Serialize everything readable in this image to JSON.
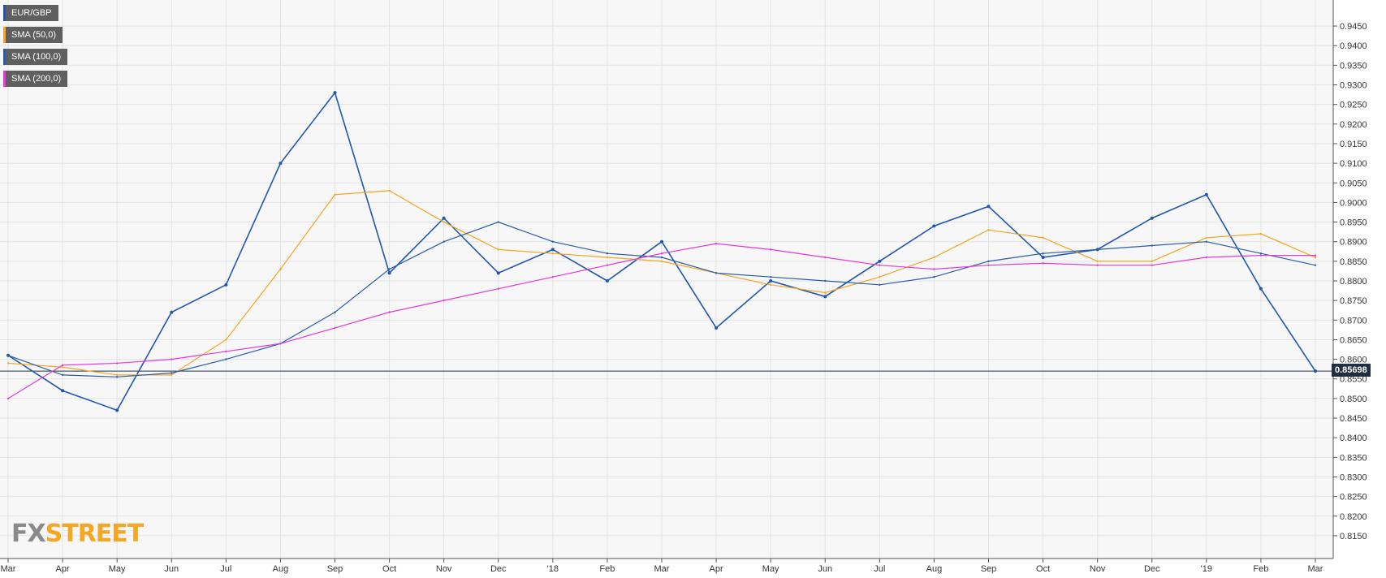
{
  "legend": [
    {
      "label": "EUR/GBP",
      "color": "#1f57b0"
    },
    {
      "label": "SMA (50,0)",
      "color": "#f5a623"
    },
    {
      "label": "SMA (100,0)",
      "color": "#2a5caa"
    },
    {
      "label": "SMA (200,0)",
      "color": "#e33ad8"
    }
  ],
  "logo": {
    "fx": "FX",
    "street": "STREET"
  },
  "chart_data": {
    "type": "line",
    "title": "",
    "xlabel": "",
    "ylabel": "",
    "ylim": [
      0.8125,
      0.9475
    ],
    "grid": true,
    "y_ticks": [
      "0.9450",
      "0.9400",
      "0.9350",
      "0.9300",
      "0.9250",
      "0.9200",
      "0.9150",
      "0.9100",
      "0.9050",
      "0.9000",
      "0.8950",
      "0.8900",
      "0.8850",
      "0.8800",
      "0.8750",
      "0.8700",
      "0.8650",
      "0.8600",
      "0.8550",
      "0.8500",
      "0.8450",
      "0.8400",
      "0.8350",
      "0.8300",
      "0.8250",
      "0.8200",
      "0.8150"
    ],
    "x_ticks": [
      "Mar",
      "Apr",
      "May",
      "Jun",
      "Jul",
      "Aug",
      "Sep",
      "Oct",
      "Nov",
      "Dec",
      "'18",
      "Feb",
      "Mar",
      "Apr",
      "May",
      "Jun",
      "Jul",
      "Aug",
      "Sep",
      "Oct",
      "Nov",
      "Dec",
      "'19",
      "Feb",
      "Mar"
    ],
    "last_price": "0.85698",
    "colors": {
      "up": "#1f57b0",
      "down": "#f5a623",
      "sma50": "#f5a623",
      "sma100": "#2a5caa",
      "sma200": "#e33ad8",
      "grid": "#e3e3e3",
      "bg": "#f7f7f7"
    },
    "series": [
      {
        "name": "EUR/GBP",
        "x": [
          "Mar",
          "Apr",
          "May",
          "Jun",
          "Jul",
          "Aug",
          "Sep",
          "Oct",
          "Nov",
          "Dec",
          "'18",
          "Feb",
          "Mar",
          "Apr",
          "May",
          "Jun",
          "Jul",
          "Aug",
          "Sep",
          "Oct",
          "Nov",
          "Dec",
          "'19",
          "Feb",
          "Mar"
        ],
        "values": [
          0.861,
          0.852,
          0.847,
          0.872,
          0.879,
          0.91,
          0.928,
          0.882,
          0.896,
          0.882,
          0.888,
          0.88,
          0.89,
          0.868,
          0.88,
          0.876,
          0.885,
          0.894,
          0.899,
          0.886,
          0.888,
          0.896,
          0.902,
          0.878,
          0.857
        ]
      },
      {
        "name": "SMA (50,0)",
        "x": [
          "Mar",
          "Apr",
          "May",
          "Jun",
          "Jul",
          "Aug",
          "Sep",
          "Oct",
          "Nov",
          "Dec",
          "'18",
          "Feb",
          "Mar",
          "Apr",
          "May",
          "Jun",
          "Jul",
          "Aug",
          "Sep",
          "Oct",
          "Nov",
          "Dec",
          "'19",
          "Feb",
          "Mar"
        ],
        "values": [
          0.859,
          0.858,
          0.856,
          0.856,
          0.865,
          0.883,
          0.902,
          0.903,
          0.895,
          0.888,
          0.887,
          0.886,
          0.885,
          0.882,
          0.879,
          0.877,
          0.881,
          0.886,
          0.893,
          0.891,
          0.885,
          0.885,
          0.891,
          0.892,
          0.886
        ]
      },
      {
        "name": "SMA (100,0)",
        "x": [
          "Mar",
          "Apr",
          "May",
          "Jun",
          "Jul",
          "Aug",
          "Sep",
          "Oct",
          "Nov",
          "Dec",
          "'18",
          "Feb",
          "Mar",
          "Apr",
          "May",
          "Jun",
          "Jul",
          "Aug",
          "Sep",
          "Oct",
          "Nov",
          "Dec",
          "'19",
          "Feb",
          "Mar"
        ],
        "values": [
          0.861,
          0.856,
          0.8555,
          0.8565,
          0.86,
          0.864,
          0.872,
          0.883,
          0.89,
          0.895,
          0.89,
          0.887,
          0.886,
          0.882,
          0.881,
          0.88,
          0.879,
          0.881,
          0.885,
          0.887,
          0.888,
          0.889,
          0.89,
          0.887,
          0.884
        ]
      },
      {
        "name": "SMA (200,0)",
        "x": [
          "Mar",
          "Apr",
          "May",
          "Jun",
          "Jul",
          "Aug",
          "Sep",
          "Oct",
          "Nov",
          "Dec",
          "'18",
          "Feb",
          "Mar",
          "Apr",
          "May",
          "Jun",
          "Jul",
          "Aug",
          "Sep",
          "Oct",
          "Nov",
          "Dec",
          "'19",
          "Feb",
          "Mar"
        ],
        "values": [
          0.85,
          0.8585,
          0.859,
          0.86,
          0.862,
          0.864,
          0.868,
          0.872,
          0.875,
          0.878,
          0.881,
          0.884,
          0.887,
          0.8895,
          0.888,
          0.886,
          0.884,
          0.883,
          0.884,
          0.8845,
          0.884,
          0.884,
          0.886,
          0.8865,
          0.8865
        ]
      }
    ]
  }
}
